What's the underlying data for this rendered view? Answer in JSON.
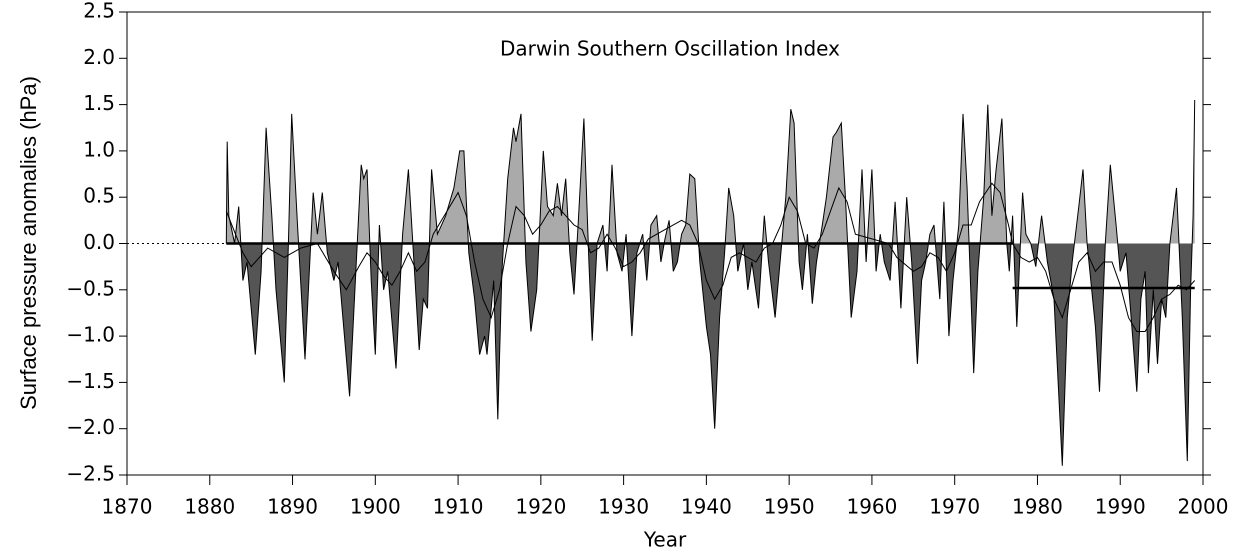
{
  "chart_data": {
    "type": "area",
    "title": "Darwin Southern Oscillation Index",
    "xlabel": "Year",
    "ylabel": "Surface pressure anomalies (hPa)",
    "xlim": [
      1870,
      2000
    ],
    "ylim": [
      -2.5,
      2.5
    ],
    "xticks": [
      1870,
      1880,
      1890,
      1900,
      1910,
      1920,
      1930,
      1940,
      1950,
      1960,
      1970,
      1980,
      1990,
      2000
    ],
    "yticks": [
      {
        "value": 2.5,
        "label": "2.5"
      },
      {
        "value": 2.0,
        "label": "2.0"
      },
      {
        "value": 1.5,
        "label": "1.5"
      },
      {
        "value": 1.0,
        "label": "1.0"
      },
      {
        "value": 0.5,
        "label": "0.5"
      },
      {
        "value": 0.0,
        "label": "0.0"
      },
      {
        "value": -0.5,
        "label": "−0.5"
      },
      {
        "value": -1.0,
        "label": "−1.0"
      },
      {
        "value": -1.5,
        "label": "−1.5"
      },
      {
        "value": -2.0,
        "label": "−2.0"
      },
      {
        "value": -2.5,
        "label": "−2.5"
      }
    ],
    "series": [
      {
        "color": "#000000",
        "fill_above": "#aaaaaa",
        "fill_below": "#555555",
        "x": [
          1882.0,
          1882.1,
          1882.3,
          1883,
          1883.5,
          1884,
          1884.5,
          1885.5,
          1886.2,
          1886.8,
          1887.5,
          1888,
          1889,
          1889.5,
          1889.9,
          1890.6,
          1891.5,
          1892.5,
          1893,
          1893.6,
          1894.2,
          1895,
          1895.5,
          1896.9,
          1897.7,
          1898.3,
          1898.6,
          1899,
          1899.5,
          1900,
          1900.5,
          1901,
          1901.5,
          1902.5,
          1903.3,
          1904,
          1904.6,
          1905.3,
          1905.8,
          1906.3,
          1906.8,
          1907.5,
          1908.5,
          1909.5,
          1910.2,
          1910.7,
          1911.3,
          1912,
          1912.6,
          1913.2,
          1913.5,
          1914.3,
          1914.8,
          1915.3,
          1916,
          1916.7,
          1917,
          1917.6,
          1918.2,
          1918.8,
          1919.5,
          1920.3,
          1920.8,
          1921.5,
          1922,
          1922.5,
          1923,
          1923.5,
          1924,
          1924.5,
          1925.2,
          1925.8,
          1926.2,
          1926.8,
          1927.5,
          1928,
          1928.6,
          1929.2,
          1929.8,
          1930.3,
          1931,
          1931.6,
          1932.3,
          1932.8,
          1933.3,
          1934,
          1934.5,
          1935,
          1935.5,
          1936,
          1936.5,
          1937,
          1937.5,
          1938,
          1938.6,
          1939.2,
          1940,
          1940.5,
          1941,
          1941.6,
          1942.2,
          1942.7,
          1943.3,
          1943.8,
          1944.5,
          1945,
          1945.5,
          1946.3,
          1947,
          1947.5,
          1948.3,
          1949,
          1949.6,
          1950.2,
          1950.6,
          1951.2,
          1951.6,
          1952.2,
          1952.8,
          1953.3,
          1954,
          1954.5,
          1955.3,
          1955.7,
          1956.3,
          1956.8,
          1957.5,
          1958.2,
          1958.8,
          1959.3,
          1960,
          1960.5,
          1961,
          1961.5,
          1962.2,
          1962.8,
          1963.5,
          1964.2,
          1964.8,
          1965.5,
          1966,
          1966.5,
          1967,
          1967.5,
          1968.2,
          1968.7,
          1969.3,
          1969.8,
          1970.5,
          1971,
          1971.5,
          1972.3,
          1972.8,
          1973.5,
          1974,
          1974.5,
          1975,
          1975.7,
          1976.3,
          1976.6,
          1977,
          1977.5,
          1978.2,
          1978.6,
          1979.2,
          1979.8,
          1980.5,
          1981.2,
          1982,
          1983,
          1983.6,
          1984.2,
          1985,
          1985.5,
          1986,
          1987,
          1987.5,
          1988.2,
          1988.8,
          1989.5,
          1990,
          1990.7,
          1991.5,
          1992,
          1992.5,
          1993,
          1993.4,
          1994,
          1994.5,
          1995,
          1995.5,
          1996,
          1996.8,
          1997.5,
          1998.1,
          1998.5,
          1998.8,
          1999
        ],
        "values": [
          0.0,
          1.1,
          0.3,
          0.0,
          0.4,
          -0.4,
          -0.2,
          -1.2,
          -0.3,
          1.25,
          0.3,
          -0.5,
          -1.5,
          0.0,
          1.4,
          0.2,
          -1.25,
          0.55,
          0.1,
          0.55,
          -0.1,
          -0.4,
          -0.2,
          -1.65,
          -0.2,
          0.85,
          0.7,
          0.8,
          -0.4,
          -1.2,
          0.2,
          -0.5,
          -0.3,
          -1.35,
          0.1,
          0.8,
          -0.1,
          -1.15,
          -0.6,
          -0.7,
          0.8,
          0.1,
          0.3,
          0.6,
          1.0,
          1.0,
          -0.1,
          -0.6,
          -1.2,
          -1.0,
          -1.2,
          -0.4,
          -1.9,
          -0.3,
          0.7,
          1.25,
          1.1,
          1.4,
          -0.2,
          -0.95,
          -0.5,
          1.0,
          0.4,
          0.3,
          0.65,
          0.3,
          0.7,
          -0.1,
          -0.55,
          0.2,
          1.35,
          -0.2,
          -1.05,
          0.0,
          0.2,
          -0.3,
          0.85,
          -0.1,
          -0.3,
          0.1,
          -1.0,
          -0.1,
          0.1,
          -0.4,
          0.2,
          0.3,
          -0.2,
          0.05,
          0.25,
          -0.3,
          -0.2,
          0.1,
          0.2,
          0.75,
          0.7,
          -0.2,
          -0.9,
          -1.2,
          -2.0,
          -0.8,
          -0.1,
          0.6,
          0.3,
          -0.3,
          0.0,
          -0.5,
          -0.2,
          -0.7,
          0.3,
          -0.2,
          -0.8,
          -0.1,
          0.5,
          1.45,
          1.3,
          -0.2,
          -0.5,
          0.1,
          -0.65,
          -0.2,
          0.2,
          0.5,
          1.15,
          1.2,
          1.3,
          0.5,
          -0.8,
          -0.3,
          0.8,
          -0.2,
          0.8,
          -0.3,
          0.1,
          -0.2,
          -0.4,
          0.45,
          -0.7,
          0.5,
          -0.2,
          -1.3,
          -0.4,
          -0.2,
          0.1,
          0.2,
          -0.6,
          0.45,
          -1.0,
          -0.4,
          0.2,
          1.4,
          0.6,
          -1.4,
          -0.3,
          0.5,
          1.5,
          0.3,
          0.8,
          1.35,
          0.0,
          -0.3,
          0.3,
          -0.9,
          0.55,
          0.1,
          0.0,
          -0.25,
          0.3,
          -0.2,
          -0.6,
          -2.4,
          -0.8,
          -0.2,
          0.4,
          0.8,
          0.0,
          -0.9,
          -1.6,
          0.0,
          0.85,
          0.2,
          -0.3,
          -0.1,
          -1.0,
          -1.6,
          -0.6,
          -0.3,
          -1.4,
          -0.5,
          -1.3,
          -0.6,
          -0.8,
          0.0,
          0.6,
          -0.8,
          -2.35,
          -0.5,
          0.3,
          1.55
        ]
      },
      {
        "color": "#000000",
        "x": [
          1882,
          1884,
          1885,
          1887,
          1889,
          1891,
          1893,
          1895,
          1896.5,
          1898,
          1899,
          1900,
          1901,
          1902,
          1903,
          1904,
          1905,
          1906,
          1907,
          1909,
          1910,
          1911,
          1912,
          1913,
          1914,
          1915,
          1916,
          1917,
          1918,
          1919,
          1920,
          1921,
          1922,
          1923,
          1924,
          1925,
          1926,
          1927,
          1928,
          1929,
          1930,
          1931,
          1932,
          1933,
          1935,
          1937,
          1938,
          1939,
          1940,
          1941,
          1942,
          1943,
          1944,
          1945,
          1946,
          1947,
          1948,
          1949,
          1950,
          1951,
          1952,
          1953,
          1954,
          1955,
          1956,
          1957,
          1958,
          1960,
          1962,
          1963,
          1965,
          1966,
          1967,
          1968,
          1969,
          1970,
          1971,
          1972,
          1973,
          1974.5,
          1975.5,
          1976.5,
          1977,
          1978,
          1979,
          1980,
          1981,
          1982,
          1983,
          1984,
          1985,
          1986,
          1987,
          1988,
          1989,
          1990,
          1991,
          1992,
          1993,
          1994,
          1995,
          1996,
          1997,
          1998,
          1999
        ],
        "values": [
          0.35,
          -0.1,
          -0.25,
          -0.05,
          -0.15,
          -0.05,
          0.0,
          -0.3,
          -0.5,
          -0.25,
          -0.1,
          -0.2,
          -0.35,
          -0.45,
          -0.3,
          -0.1,
          -0.3,
          -0.2,
          0.1,
          0.4,
          0.55,
          0.3,
          -0.2,
          -0.6,
          -0.8,
          -0.5,
          0.0,
          0.4,
          0.3,
          0.1,
          0.2,
          0.35,
          0.4,
          0.3,
          0.2,
          0.15,
          -0.1,
          -0.05,
          0.1,
          -0.05,
          -0.25,
          -0.2,
          -0.1,
          0.05,
          0.15,
          0.25,
          0.2,
          0.0,
          -0.4,
          -0.6,
          -0.45,
          -0.15,
          -0.1,
          -0.15,
          -0.2,
          -0.05,
          0.0,
          0.2,
          0.5,
          0.35,
          0.0,
          -0.05,
          0.1,
          0.35,
          0.6,
          0.45,
          0.1,
          0.05,
          0.0,
          -0.15,
          -0.3,
          -0.25,
          -0.1,
          -0.15,
          -0.3,
          -0.1,
          0.2,
          0.2,
          0.45,
          0.65,
          0.55,
          0.2,
          0.0,
          -0.15,
          -0.2,
          -0.15,
          -0.3,
          -0.6,
          -0.8,
          -0.5,
          -0.2,
          -0.1,
          -0.3,
          -0.2,
          -0.2,
          -0.45,
          -0.8,
          -0.95,
          -0.95,
          -0.8,
          -0.6,
          -0.55,
          -0.45,
          -0.5,
          -0.4
        ]
      }
    ],
    "reference_lines": [
      {
        "x": [
          1870,
          1882
        ],
        "value": 0,
        "style": "dotted"
      },
      {
        "x": [
          1882,
          1977
        ],
        "value": 0,
        "style": "solid"
      },
      {
        "x": [
          1977,
          1999
        ],
        "value": -0.48,
        "style": "solid"
      }
    ]
  }
}
